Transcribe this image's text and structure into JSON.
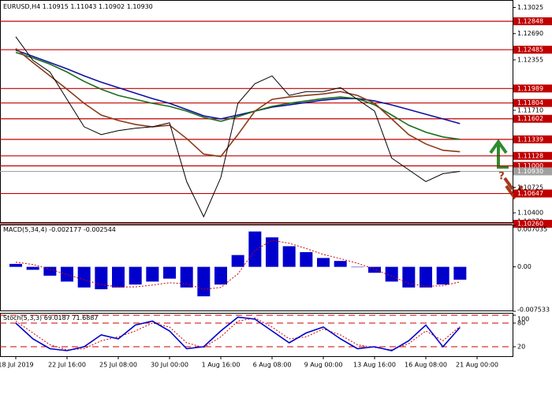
{
  "chart_data": [
    {
      "type": "line",
      "title": "EURUSD,H4",
      "ohlc": {
        "values": [
          1.10915,
          1.11043,
          1.10902,
          1.1093
        ],
        "value_labels": [
          "1.10915",
          "1.11043",
          "1.10902",
          "1.10930"
        ],
        "color": "#a0a0a0"
      },
      "categories": [
        "18 Jul 2019",
        null,
        null,
        "22 Jul 16:00",
        null,
        null,
        "25 Jul 08:00",
        null,
        null,
        "30 Jul 00:00",
        null,
        null,
        "1 Aug 16:00",
        null,
        null,
        "6 Aug 08:00",
        null,
        null,
        "9 Aug 00:00",
        null,
        null,
        "13 Aug 16:00",
        null,
        null,
        "16 Aug 08:00",
        null,
        null,
        "21 Aug 00:00"
      ],
      "series": [
        {
          "color": "#000000",
          "values": [
            1.1265,
            1.1235,
            1.122,
            1.1185,
            1.115,
            1.114,
            1.1145,
            1.1148,
            1.115,
            1.1155,
            1.108,
            1.1035,
            1.1085,
            1.118,
            1.1205,
            1.1215,
            1.119,
            1.1195,
            1.1195,
            1.12,
            1.1185,
            1.117,
            1.111,
            1.1095,
            1.108,
            1.109,
            1.1093,
            null
          ]
        },
        {
          "color": "#1010a0",
          "values": [
            1.1248,
            1.124,
            1.1232,
            1.1224,
            1.1215,
            1.1207,
            1.12,
            1.1193,
            1.1186,
            1.118,
            1.1172,
            1.1164,
            1.116,
            1.1165,
            1.117,
            1.1175,
            1.1178,
            1.1181,
            1.1184,
            1.1186,
            1.1186,
            1.1183,
            1.1178,
            1.1172,
            1.1166,
            1.116,
            1.1154,
            null
          ]
        },
        {
          "color": "#1a6e1a",
          "values": [
            1.1245,
            1.1238,
            1.123,
            1.122,
            1.1208,
            1.1198,
            1.119,
            1.1185,
            1.118,
            1.1176,
            1.117,
            1.1162,
            1.1157,
            1.1163,
            1.117,
            1.1176,
            1.118,
            1.1183,
            1.1186,
            1.1188,
            1.1186,
            1.1178,
            1.1165,
            1.1152,
            1.1143,
            1.1137,
            1.1134,
            null
          ]
        },
        {
          "color": "#8b3a1a",
          "values": [
            1.125,
            1.1232,
            1.1215,
            1.1198,
            1.118,
            1.1165,
            1.1158,
            1.1153,
            1.115,
            1.1152,
            1.1135,
            1.1115,
            1.1112,
            1.114,
            1.117,
            1.1185,
            1.1188,
            1.119,
            1.1192,
            1.1195,
            1.119,
            1.118,
            1.116,
            1.114,
            1.1128,
            1.112,
            1.1118,
            null
          ]
        }
      ],
      "levels": {
        "color": "#c00000",
        "values": [
          1.12848,
          1.12485,
          1.11989,
          1.11804,
          1.11602,
          1.11339,
          1.11128,
          1.11,
          1.10647,
          1.1026
        ],
        "value_labels": [
          "1.12848",
          "1.12485",
          "1.11989",
          "1.11804",
          "1.11602",
          "1.11339",
          "1.11128",
          "1.11000",
          "1.10647",
          "1.10260"
        ]
      },
      "annotation": "?",
      "ylim": [
        1.1027,
        1.1312
      ],
      "yticks": [
        1.13025,
        {
          "value": 1.1269,
          "label": "1.12690"
        },
        1.12355,
        {
          "value": 1.1171,
          "label": "1.11710"
        },
        1.10725,
        {
          "value": 1.104,
          "label": "1.10400"
        },
        {
          "value": 1.1027,
          "label": "1.10270"
        }
      ]
    },
    {
      "type": "bar",
      "title": "MACD(5,34,4)",
      "series": [
        {
          "color": "#0000cc",
          "values": [
            0.0005,
            -0.0005,
            -0.0015,
            -0.0025,
            -0.0035,
            -0.0038,
            -0.0035,
            -0.003,
            -0.0025,
            -0.002,
            -0.0035,
            -0.005,
            -0.003,
            0.002,
            0.006,
            0.005,
            0.0035,
            0.0025,
            0.0015,
            0.001,
            0.0,
            -0.001,
            -0.0025,
            -0.0035,
            -0.0035,
            -0.003,
            -0.002177,
            null
          ]
        },
        {
          "color": "#cc0000",
          "values": [
            0.0008,
            0.0004,
            -0.0004,
            -0.0013,
            -0.0022,
            -0.003,
            -0.0034,
            -0.0034,
            -0.0031,
            -0.0027,
            -0.0029,
            -0.0038,
            -0.0035,
            -0.0012,
            0.0028,
            0.0045,
            0.004,
            0.0031,
            0.0021,
            0.0014,
            0.0006,
            -0.0004,
            -0.0016,
            -0.0028,
            -0.0033,
            -0.0032,
            -0.002544,
            null
          ]
        }
      ],
      "ylim": [
        -0.007533,
        0.007035
      ],
      "yticks": [
        0.007035,
        {
          "value": 0,
          "label": "0.00"
        },
        -0.007533
      ]
    },
    {
      "type": "line",
      "title": "Stoch(5,3,3)",
      "series": [
        {
          "color": "#0000cc",
          "values": [
            80,
            40,
            15,
            10,
            20,
            50,
            40,
            75,
            85,
            60,
            15,
            20,
            60,
            95,
            90,
            60,
            30,
            55,
            70,
            40,
            15,
            20,
            10,
            35,
            75,
            20,
            69.0187,
            null
          ]
        },
        {
          "color": "#cc0000",
          "values": [
            85,
            55,
            25,
            12,
            15,
            35,
            45,
            60,
            80,
            70,
            30,
            18,
            45,
            85,
            93,
            70,
            40,
            45,
            65,
            50,
            25,
            18,
            12,
            28,
            60,
            35,
            71.6887,
            null
          ]
        }
      ],
      "ylim": [
        0,
        100
      ],
      "yticks": [
        100,
        80,
        20
      ]
    }
  ]
}
